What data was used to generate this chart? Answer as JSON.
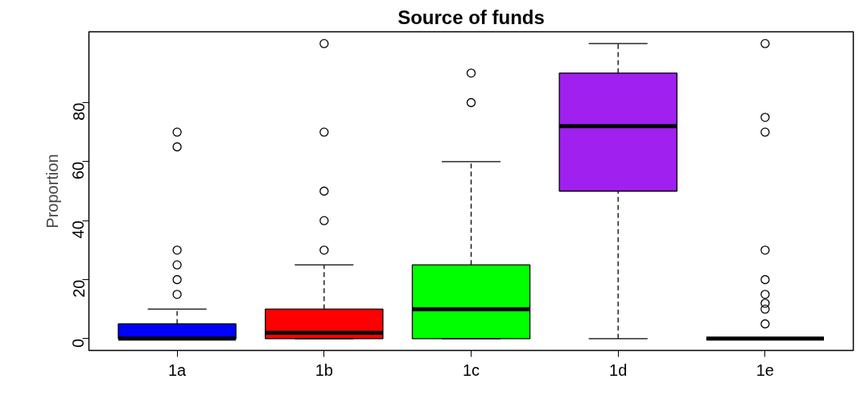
{
  "chart_data": {
    "type": "box",
    "title": "Source of funds",
    "ylabel": "Proportion",
    "categories": [
      "1a",
      "1b",
      "1c",
      "1d",
      "1e"
    ],
    "colors": [
      "#0000ff",
      "#ff0000",
      "#00ff00",
      "#a020f0",
      "#000000"
    ],
    "boxes": [
      {
        "low": 0,
        "q1": 0,
        "median": 0,
        "q3": 5,
        "high": 10,
        "outliers": [
          15,
          20,
          25,
          30,
          65,
          70
        ]
      },
      {
        "low": 0,
        "q1": 0,
        "median": 2,
        "q3": 10,
        "high": 25,
        "outliers": [
          30,
          40,
          50,
          70,
          100
        ]
      },
      {
        "low": 0,
        "q1": 0,
        "median": 10,
        "q3": 25,
        "high": 60,
        "outliers": [
          80,
          90
        ]
      },
      {
        "low": 0,
        "q1": 50,
        "median": 72,
        "q3": 90,
        "high": 100
      },
      {
        "low": 0,
        "q1": 0,
        "median": 0,
        "q3": 0,
        "high": 0,
        "outliers": [
          5,
          10,
          12,
          15,
          20,
          30,
          70,
          75,
          100
        ]
      }
    ],
    "ylim": [
      -4,
      104
    ],
    "yticks": [
      0,
      20,
      40,
      60,
      80
    ],
    "grid": false,
    "line_style": "dashed",
    "marker": "circle"
  }
}
